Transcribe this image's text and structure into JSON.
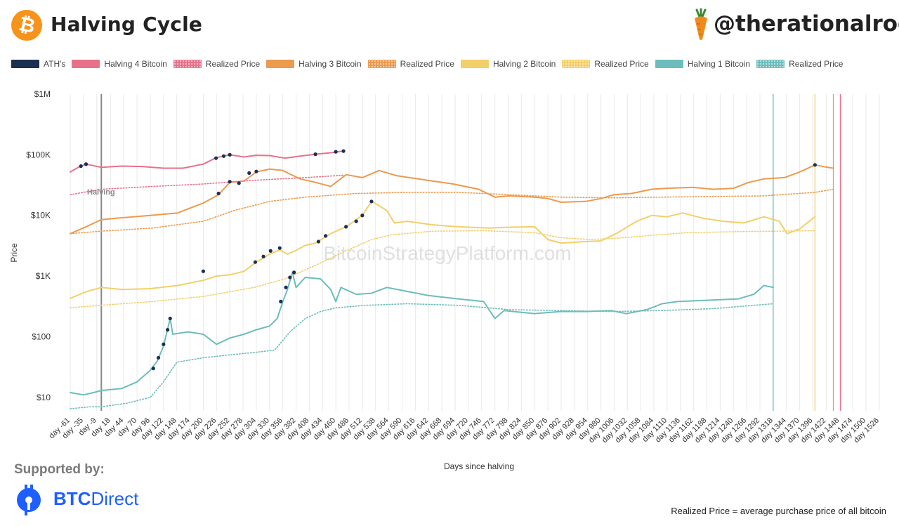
{
  "header": {
    "title": "Halving Cycle",
    "btc_symbol": "₿",
    "handle": "@therationalroot"
  },
  "legend": [
    {
      "label": "ATH's",
      "color": "#1b2f52",
      "style": "solid"
    },
    {
      "label": "Halving 4 Bitcoin",
      "color": "#e8718a",
      "style": "solid"
    },
    {
      "label": "Realized Price",
      "color": "#e8718a",
      "style": "dotted"
    },
    {
      "label": "Halving 3 Bitcoin",
      "color": "#ec9a4e",
      "style": "solid"
    },
    {
      "label": "Realized Price",
      "color": "#ec9a4e",
      "style": "dotted"
    },
    {
      "label": "Halving 2 Bitcoin",
      "color": "#f3cf6a",
      "style": "solid"
    },
    {
      "label": "Realized Price",
      "color": "#f3cf6a",
      "style": "dotted"
    },
    {
      "label": "Halving 1 Bitcoin",
      "color": "#6cbdbb",
      "style": "solid"
    },
    {
      "label": "Realized Price",
      "color": "#6cbdbb",
      "style": "dotted"
    }
  ],
  "chart_data": {
    "type": "line",
    "xlabel": "Days since halving",
    "ylabel": "Price",
    "yscale": "log",
    "ylim": [
      6,
      1000000
    ],
    "xlim": [
      -61,
      1540
    ],
    "y_ticks": [
      {
        "value": 10,
        "label": "$10"
      },
      {
        "value": 100,
        "label": "$100"
      },
      {
        "value": 1000,
        "label": "$1K"
      },
      {
        "value": 10000,
        "label": "$10K"
      },
      {
        "value": 100000,
        "label": "$100K"
      },
      {
        "value": 1000000,
        "label": "$1M"
      }
    ],
    "x_ticks": [
      -61,
      -35,
      -9,
      18,
      44,
      70,
      96,
      122,
      148,
      174,
      200,
      226,
      252,
      278,
      304,
      330,
      356,
      382,
      408,
      434,
      460,
      486,
      512,
      538,
      564,
      590,
      616,
      642,
      668,
      694,
      720,
      746,
      772,
      798,
      824,
      850,
      876,
      902,
      928,
      954,
      980,
      1006,
      1032,
      1058,
      1084,
      1110,
      1136,
      1162,
      1188,
      1214,
      1240,
      1266,
      1292,
      1318,
      1344,
      1370,
      1396,
      1422,
      1448,
      1474,
      1500,
      1526
    ],
    "x_tick_prefix": "day ",
    "grid": true,
    "watermark": "BitcoinStrategyPlatform.com",
    "annotations": [
      {
        "text": "Halving",
        "x": 0
      }
    ],
    "vlines": [
      {
        "x": 0,
        "color": "#888888"
      },
      {
        "x": 1318,
        "color": "#6cbdbb"
      },
      {
        "x": 1400,
        "color": "#f3cf6a"
      },
      {
        "x": 1436,
        "color": "#ec9a4e"
      },
      {
        "x": 1450,
        "color": "#e8718a"
      }
    ],
    "series": [
      {
        "name": "Halving 1 Bitcoin",
        "color": "#6cbdbb",
        "style": "solid",
        "points": [
          [
            -61,
            12
          ],
          [
            -35,
            11
          ],
          [
            -15,
            12
          ],
          [
            0,
            13
          ],
          [
            40,
            14
          ],
          [
            70,
            18
          ],
          [
            96,
            28
          ],
          [
            110,
            40
          ],
          [
            122,
            70
          ],
          [
            135,
            200
          ],
          [
            140,
            110
          ],
          [
            170,
            120
          ],
          [
            200,
            110
          ],
          [
            226,
            75
          ],
          [
            252,
            95
          ],
          [
            280,
            110
          ],
          [
            304,
            130
          ],
          [
            330,
            150
          ],
          [
            345,
            200
          ],
          [
            356,
            380
          ],
          [
            365,
            600
          ],
          [
            375,
            1150
          ],
          [
            382,
            650
          ],
          [
            400,
            950
          ],
          [
            430,
            900
          ],
          [
            450,
            600
          ],
          [
            460,
            380
          ],
          [
            470,
            650
          ],
          [
            500,
            500
          ],
          [
            530,
            520
          ],
          [
            560,
            650
          ],
          [
            590,
            580
          ],
          [
            640,
            480
          ],
          [
            700,
            420
          ],
          [
            750,
            380
          ],
          [
            772,
            200
          ],
          [
            790,
            270
          ],
          [
            850,
            240
          ],
          [
            900,
            260
          ],
          [
            950,
            260
          ],
          [
            1000,
            270
          ],
          [
            1030,
            240
          ],
          [
            1070,
            280
          ],
          [
            1100,
            350
          ],
          [
            1130,
            380
          ],
          [
            1190,
            400
          ],
          [
            1250,
            420
          ],
          [
            1280,
            500
          ],
          [
            1300,
            700
          ],
          [
            1318,
            650
          ]
        ]
      },
      {
        "name": "Realized Price",
        "color": "#6cbdbb",
        "style": "dotted",
        "points": [
          [
            -61,
            6.5
          ],
          [
            -20,
            7
          ],
          [
            0,
            7
          ],
          [
            50,
            8
          ],
          [
            96,
            10
          ],
          [
            122,
            18
          ],
          [
            148,
            38
          ],
          [
            200,
            45
          ],
          [
            250,
            50
          ],
          [
            300,
            55
          ],
          [
            340,
            60
          ],
          [
            370,
            120
          ],
          [
            400,
            200
          ],
          [
            430,
            260
          ],
          [
            460,
            300
          ],
          [
            520,
            330
          ],
          [
            600,
            350
          ],
          [
            700,
            330
          ],
          [
            800,
            280
          ],
          [
            900,
            270
          ],
          [
            1000,
            260
          ],
          [
            1100,
            270
          ],
          [
            1200,
            290
          ],
          [
            1318,
            350
          ]
        ]
      },
      {
        "name": "Halving 2 Bitcoin",
        "color": "#f3cf6a",
        "style": "solid",
        "points": [
          [
            -61,
            430
          ],
          [
            -30,
            550
          ],
          [
            0,
            650
          ],
          [
            40,
            600
          ],
          [
            96,
            620
          ],
          [
            150,
            700
          ],
          [
            200,
            850
          ],
          [
            226,
            1000
          ],
          [
            252,
            1050
          ],
          [
            280,
            1200
          ],
          [
            304,
            1700
          ],
          [
            330,
            2300
          ],
          [
            350,
            2700
          ],
          [
            365,
            2300
          ],
          [
            380,
            2600
          ],
          [
            400,
            3200
          ],
          [
            420,
            3500
          ],
          [
            450,
            5000
          ],
          [
            480,
            6500
          ],
          [
            512,
            10000
          ],
          [
            530,
            17000
          ],
          [
            545,
            14500
          ],
          [
            560,
            12000
          ],
          [
            575,
            7500
          ],
          [
            600,
            8000
          ],
          [
            650,
            7000
          ],
          [
            700,
            6500
          ],
          [
            760,
            6200
          ],
          [
            800,
            6400
          ],
          [
            850,
            6500
          ],
          [
            876,
            4000
          ],
          [
            902,
            3500
          ],
          [
            950,
            3700
          ],
          [
            980,
            3800
          ],
          [
            1010,
            5000
          ],
          [
            1050,
            8000
          ],
          [
            1080,
            10000
          ],
          [
            1110,
            9500
          ],
          [
            1140,
            11000
          ],
          [
            1180,
            9000
          ],
          [
            1220,
            8000
          ],
          [
            1260,
            7500
          ],
          [
            1300,
            9500
          ],
          [
            1330,
            8000
          ],
          [
            1345,
            5000
          ],
          [
            1370,
            6000
          ],
          [
            1400,
            9500
          ]
        ]
      },
      {
        "name": "Realized Price",
        "color": "#f3cf6a",
        "style": "dotted",
        "points": [
          [
            -61,
            300
          ],
          [
            0,
            330
          ],
          [
            100,
            380
          ],
          [
            200,
            460
          ],
          [
            300,
            650
          ],
          [
            360,
            900
          ],
          [
            420,
            1500
          ],
          [
            480,
            2600
          ],
          [
            530,
            4000
          ],
          [
            570,
            4800
          ],
          [
            650,
            5500
          ],
          [
            750,
            5600
          ],
          [
            850,
            5200
          ],
          [
            900,
            4300
          ],
          [
            960,
            4000
          ],
          [
            1010,
            4200
          ],
          [
            1080,
            4700
          ],
          [
            1150,
            5200
          ],
          [
            1250,
            5400
          ],
          [
            1400,
            5600
          ]
        ]
      },
      {
        "name": "Halving 3 Bitcoin",
        "color": "#ec9a4e",
        "style": "solid",
        "points": [
          [
            -61,
            5000
          ],
          [
            -30,
            6500
          ],
          [
            0,
            8500
          ],
          [
            30,
            9000
          ],
          [
            96,
            10000
          ],
          [
            150,
            11000
          ],
          [
            200,
            16000
          ],
          [
            230,
            22000
          ],
          [
            252,
            35000
          ],
          [
            280,
            37000
          ],
          [
            304,
            52000
          ],
          [
            330,
            58000
          ],
          [
            356,
            55000
          ],
          [
            370,
            48000
          ],
          [
            390,
            40000
          ],
          [
            420,
            35000
          ],
          [
            450,
            30000
          ],
          [
            480,
            47000
          ],
          [
            512,
            42000
          ],
          [
            545,
            55000
          ],
          [
            580,
            45000
          ],
          [
            640,
            38000
          ],
          [
            690,
            33000
          ],
          [
            740,
            27000
          ],
          [
            772,
            20000
          ],
          [
            800,
            21000
          ],
          [
            850,
            20000
          ],
          [
            876,
            19000
          ],
          [
            902,
            16500
          ],
          [
            950,
            17000
          ],
          [
            980,
            19000
          ],
          [
            1006,
            22000
          ],
          [
            1040,
            23000
          ],
          [
            1080,
            27000
          ],
          [
            1110,
            28000
          ],
          [
            1160,
            29000
          ],
          [
            1200,
            27000
          ],
          [
            1240,
            28000
          ],
          [
            1270,
            35000
          ],
          [
            1300,
            40000
          ],
          [
            1340,
            42000
          ],
          [
            1370,
            52000
          ],
          [
            1400,
            68000
          ],
          [
            1420,
            63000
          ],
          [
            1436,
            60000
          ]
        ]
      },
      {
        "name": "Realized Price",
        "color": "#ec9a4e",
        "style": "dotted",
        "points": [
          [
            -61,
            5000
          ],
          [
            0,
            5500
          ],
          [
            100,
            6200
          ],
          [
            200,
            8000
          ],
          [
            260,
            12000
          ],
          [
            330,
            17000
          ],
          [
            400,
            20000
          ],
          [
            500,
            23000
          ],
          [
            600,
            24000
          ],
          [
            700,
            24000
          ],
          [
            800,
            22000
          ],
          [
            900,
            20000
          ],
          [
            1000,
            19500
          ],
          [
            1100,
            20000
          ],
          [
            1200,
            20500
          ],
          [
            1300,
            21000
          ],
          [
            1400,
            24000
          ],
          [
            1436,
            27000
          ]
        ]
      },
      {
        "name": "Halving 4 Bitcoin",
        "color": "#e8718a",
        "style": "solid",
        "points": [
          [
            -61,
            52000
          ],
          [
            -45,
            62000
          ],
          [
            -30,
            70000
          ],
          [
            0,
            62000
          ],
          [
            40,
            65000
          ],
          [
            80,
            64000
          ],
          [
            122,
            60000
          ],
          [
            160,
            60000
          ],
          [
            200,
            70000
          ],
          [
            226,
            90000
          ],
          [
            252,
            100000
          ],
          [
            280,
            92000
          ],
          [
            304,
            98000
          ],
          [
            330,
            97000
          ],
          [
            360,
            88000
          ],
          [
            390,
            95000
          ],
          [
            420,
            102000
          ],
          [
            450,
            108000
          ],
          [
            475,
            115000
          ]
        ]
      },
      {
        "name": "Realized Price",
        "color": "#e8718a",
        "style": "dotted",
        "points": [
          [
            -61,
            22000
          ],
          [
            0,
            27000
          ],
          [
            100,
            30000
          ],
          [
            200,
            33000
          ],
          [
            300,
            38000
          ],
          [
            400,
            42000
          ],
          [
            475,
            46000
          ]
        ]
      },
      {
        "name": "ATH's",
        "color": "#1b2f52",
        "style": "markers",
        "points": [
          [
            -40,
            65000
          ],
          [
            -30,
            70000
          ],
          [
            225,
            88000
          ],
          [
            240,
            95000
          ],
          [
            252,
            100000
          ],
          [
            420,
            102000
          ],
          [
            460,
            112000
          ],
          [
            475,
            115000
          ],
          [
            1400,
            68000
          ],
          [
            270,
            34000
          ],
          [
            290,
            50000
          ],
          [
            304,
            53000
          ],
          [
            230,
            23000
          ],
          [
            252,
            36000
          ],
          [
            332,
            2600
          ],
          [
            350,
            2900
          ],
          [
            426,
            3700
          ],
          [
            440,
            4600
          ],
          [
            480,
            6500
          ],
          [
            500,
            8000
          ],
          [
            512,
            10000
          ],
          [
            530,
            17000
          ],
          [
            200,
            1200
          ],
          [
            302,
            1700
          ],
          [
            318,
            2100
          ],
          [
            102,
            30
          ],
          [
            112,
            45
          ],
          [
            122,
            75
          ],
          [
            130,
            130
          ],
          [
            135,
            200
          ],
          [
            352,
            380
          ],
          [
            362,
            650
          ],
          [
            370,
            950
          ],
          [
            378,
            1150
          ]
        ]
      }
    ]
  },
  "footer": {
    "supported_by": "Supported by:",
    "brand_bold": "BTC",
    "brand_rest": "Direct",
    "realized_note": "Realized Price = average purchase price of all bitcoin"
  }
}
